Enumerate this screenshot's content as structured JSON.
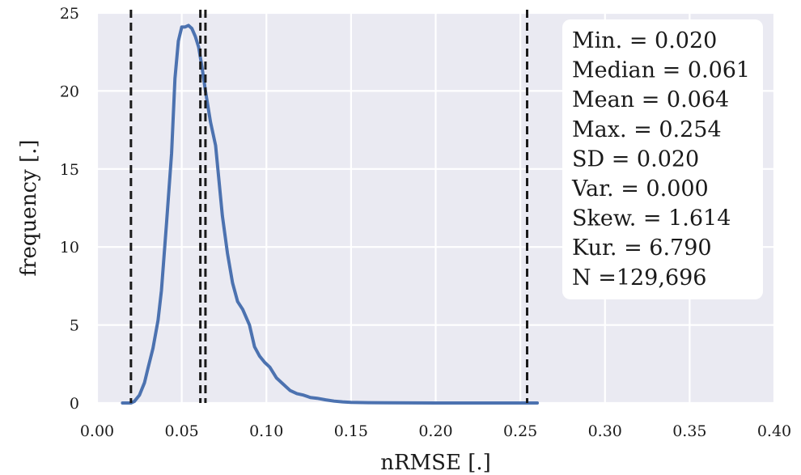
{
  "chart_data": {
    "type": "line",
    "title": "",
    "xlabel": "nRMSE [.]",
    "ylabel": "frequency [.]",
    "xlim": [
      0.0,
      0.4
    ],
    "ylim": [
      0,
      25
    ],
    "xticks": [
      0.0,
      0.05,
      0.1,
      0.15,
      0.2,
      0.25,
      0.3,
      0.35,
      0.4
    ],
    "xtick_labels": [
      "0.00",
      "0.05",
      "0.10",
      "0.15",
      "0.20",
      "0.25",
      "0.30",
      "0.35",
      "0.40"
    ],
    "yticks": [
      0,
      5,
      10,
      15,
      20,
      25
    ],
    "ytick_labels": [
      "0",
      "5",
      "10",
      "15",
      "20",
      "25"
    ],
    "grid": true,
    "series": [
      {
        "color": "#4c72b0",
        "x": [
          0.015,
          0.02,
          0.022,
          0.025,
          0.028,
          0.03,
          0.033,
          0.036,
          0.038,
          0.041,
          0.044,
          0.046,
          0.048,
          0.05,
          0.052,
          0.054,
          0.056,
          0.058,
          0.06,
          0.062,
          0.064,
          0.067,
          0.07,
          0.074,
          0.077,
          0.08,
          0.083,
          0.086,
          0.09,
          0.093,
          0.096,
          0.099,
          0.102,
          0.106,
          0.11,
          0.114,
          0.118,
          0.122,
          0.126,
          0.13,
          0.135,
          0.14,
          0.145,
          0.15,
          0.16,
          0.17,
          0.2,
          0.23,
          0.26
        ],
        "y": [
          0.0,
          0.0,
          0.1,
          0.5,
          1.3,
          2.2,
          3.5,
          5.3,
          7.2,
          11.5,
          16.0,
          20.8,
          23.2,
          24.1,
          24.1,
          24.2,
          24.0,
          23.5,
          22.8,
          21.5,
          20.0,
          18.0,
          16.5,
          12.0,
          9.6,
          7.7,
          6.5,
          6.0,
          5.0,
          3.6,
          3.0,
          2.6,
          2.3,
          1.6,
          1.2,
          0.8,
          0.6,
          0.5,
          0.35,
          0.3,
          0.2,
          0.12,
          0.07,
          0.04,
          0.02,
          0.01,
          0.0,
          0.0,
          0.0
        ]
      }
    ],
    "vlines": [
      0.02,
      0.061,
      0.064,
      0.254
    ],
    "annotation_lines": [
      "Min. = 0.020",
      "Median = 0.061",
      "Mean = 0.064",
      "Max. = 0.254",
      "SD = 0.020",
      "Var. = 0.000",
      "Skew. = 1.614",
      "Kur. = 6.790",
      "N =129,696"
    ],
    "annotation_placement": "top-right"
  },
  "colors": {
    "plot_background": "#eaeaf2",
    "grid": "#ffffff",
    "line": "#4c72b0",
    "vline": "#1a1a1a",
    "stats_box": "#ffffff"
  }
}
